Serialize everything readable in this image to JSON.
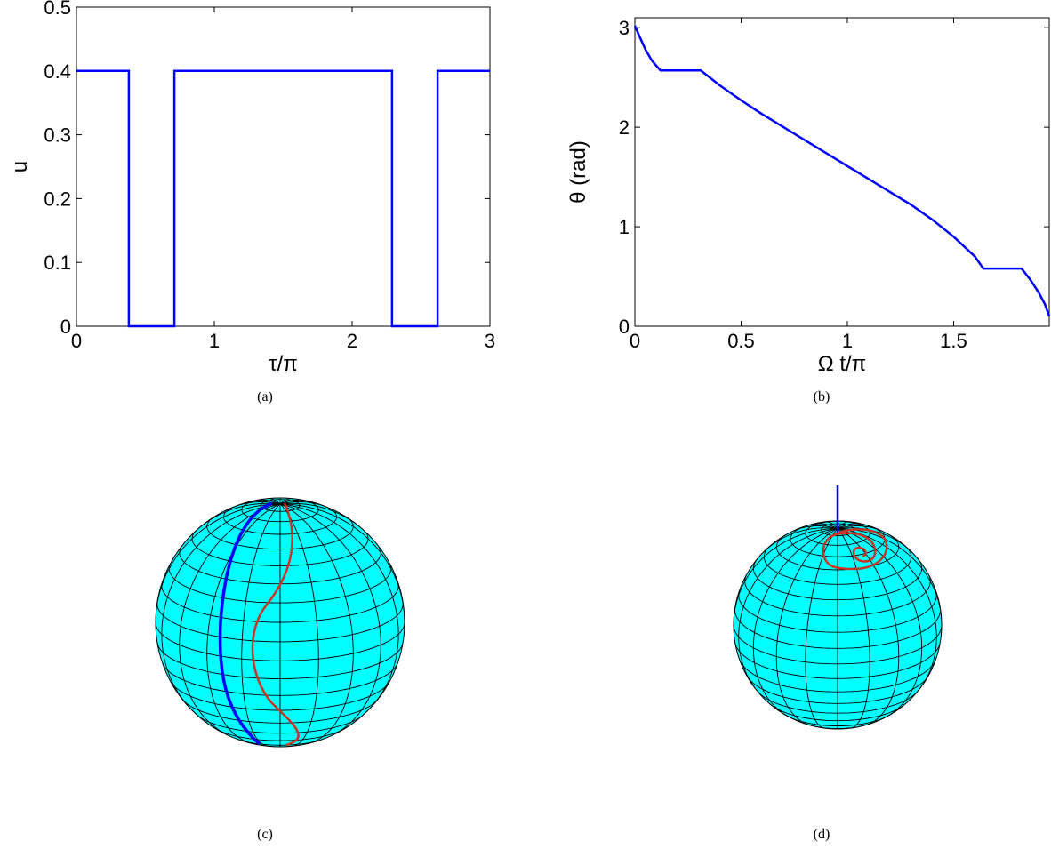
{
  "chart_data": [
    {
      "id": "a",
      "type": "line",
      "caption": "(a)",
      "xlabel": "τ/π",
      "ylabel": "u",
      "xlim": [
        0,
        3
      ],
      "ylim": [
        0,
        0.5
      ],
      "x_ticks": [
        0,
        1,
        2,
        3
      ],
      "x_tick_labels": [
        "0",
        "1",
        "2",
        "3"
      ],
      "y_ticks": [
        0,
        0.1,
        0.2,
        0.3,
        0.4,
        0.5
      ],
      "y_tick_labels": [
        "0",
        "0.1",
        "0.2",
        "0.3",
        "0.4",
        "0.5"
      ],
      "grid": false,
      "series": [
        {
          "color": "#0000ff",
          "step": true,
          "x": [
            0,
            0.38,
            0.38,
            0.71,
            0.71,
            2.29,
            2.29,
            2.62,
            2.62,
            3.0
          ],
          "y": [
            0.4,
            0.4,
            0,
            0,
            0.4,
            0.4,
            0,
            0,
            0.4,
            0.4
          ]
        }
      ]
    },
    {
      "id": "b",
      "type": "line",
      "caption": "(b)",
      "xlabel": "Ω t/π",
      "ylabel": "θ (rad)",
      "xlim": [
        0,
        1.95
      ],
      "ylim": [
        0,
        3.1
      ],
      "x_ticks": [
        0,
        0.5,
        1,
        1.5
      ],
      "x_tick_labels": [
        "0",
        "0.5",
        "1",
        "1.5"
      ],
      "y_ticks": [
        0,
        1,
        2,
        3
      ],
      "y_tick_labels": [
        "0",
        "1",
        "2",
        "3"
      ],
      "grid": false,
      "series": [
        {
          "color": "#0000ff",
          "x": [
            0,
            0.02,
            0.05,
            0.08,
            0.12,
            0.31,
            0.4,
            0.5,
            0.6,
            0.7,
            0.8,
            0.9,
            1.0,
            1.1,
            1.2,
            1.3,
            1.4,
            1.5,
            1.6,
            1.64,
            1.82,
            1.86,
            1.9,
            1.93,
            1.95
          ],
          "y": [
            3.02,
            2.92,
            2.78,
            2.67,
            2.57,
            2.57,
            2.42,
            2.27,
            2.13,
            2.0,
            1.87,
            1.74,
            1.61,
            1.48,
            1.35,
            1.22,
            1.07,
            0.9,
            0.7,
            0.58,
            0.58,
            0.47,
            0.34,
            0.22,
            0.1
          ]
        }
      ]
    }
  ],
  "spheres": [
    {
      "id": "c",
      "caption": "(c)",
      "surface_color": "#00ffff",
      "trajectories": [
        {
          "color": "#0000ff",
          "name": "blue-path"
        },
        {
          "color": "#cc3322",
          "name": "red-path"
        }
      ]
    },
    {
      "id": "d",
      "caption": "(d)",
      "surface_color": "#00ffff",
      "trajectories": [
        {
          "color": "#0000ff",
          "name": "blue-axis"
        },
        {
          "color": "#cc3322",
          "name": "red-spiral"
        }
      ]
    }
  ]
}
